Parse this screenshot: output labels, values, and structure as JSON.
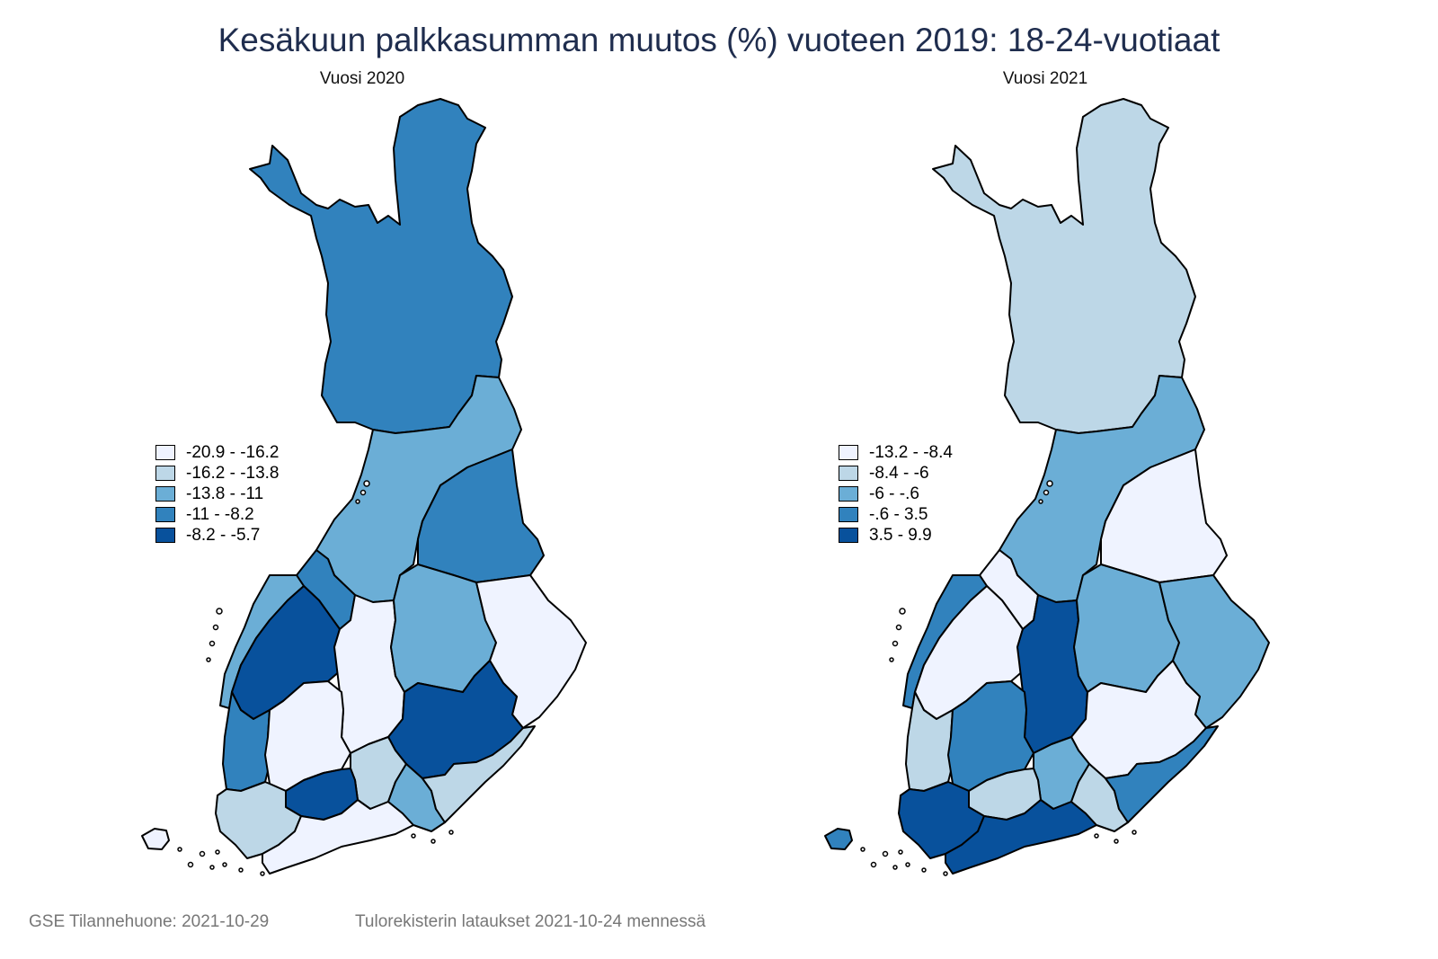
{
  "title": "Kesäkuun palkkasumman muutos (%) vuoteen 2019: 18-24-vuotiaat",
  "panels": [
    {
      "subtitle": "Vuosi 2020",
      "legend": [
        {
          "label": "-20.9  -  -16.2",
          "color": "#eff3ff"
        },
        {
          "label": "-16.2  -  -13.8",
          "color": "#bdd7e7"
        },
        {
          "label": "-13.8  -  -11",
          "color": "#6baed6"
        },
        {
          "label": "-11  -  -8.2",
          "color": "#3182bd"
        },
        {
          "label": "-8.2  -  -5.7",
          "color": "#08519c"
        }
      ],
      "regions": {
        "lappi": "#3182bd",
        "pohjois_pohjanmaa": "#6baed6",
        "kainuu": "#3182bd",
        "keski_pohjanmaa": "#3182bd",
        "pohjanmaa": "#6baed6",
        "etela_pohjanmaa": "#08519c",
        "keski_suomi": "#eff3ff",
        "pohjois_savo": "#6baed6",
        "pohjois_karjala": "#eff3ff",
        "satakunta": "#3182bd",
        "pirkanmaa": "#eff3ff",
        "etela_savo": "#08519c",
        "paijat_hame": "#bdd7e7",
        "kanta_hame": "#08519c",
        "varsinais_suomi": "#bdd7e7",
        "uusimaa": "#eff3ff",
        "kymenlaakso": "#6baed6",
        "etela_karjala": "#bdd7e7",
        "ahvenanmaa": "#eff3ff"
      }
    },
    {
      "subtitle": "Vuosi 2021",
      "legend": [
        {
          "label": "-13.2  -  -8.4",
          "color": "#eff3ff"
        },
        {
          "label": "-8.4  -  -6",
          "color": "#bdd7e7"
        },
        {
          "label": "-6  -  -.6",
          "color": "#6baed6"
        },
        {
          "label": "-.6  -  3.5",
          "color": "#3182bd"
        },
        {
          "label": "3.5  -  9.9",
          "color": "#08519c"
        }
      ],
      "regions": {
        "lappi": "#bdd7e7",
        "pohjois_pohjanmaa": "#6baed6",
        "kainuu": "#eff3ff",
        "keski_pohjanmaa": "#eff3ff",
        "pohjanmaa": "#3182bd",
        "etela_pohjanmaa": "#eff3ff",
        "keski_suomi": "#08519c",
        "pohjois_savo": "#6baed6",
        "pohjois_karjala": "#6baed6",
        "satakunta": "#bdd7e7",
        "pirkanmaa": "#3182bd",
        "etela_savo": "#eff3ff",
        "paijat_hame": "#6baed6",
        "kanta_hame": "#bdd7e7",
        "varsinais_suomi": "#08519c",
        "uusimaa": "#08519c",
        "kymenlaakso": "#bdd7e7",
        "etela_karjala": "#3182bd",
        "ahvenanmaa": "#3182bd"
      }
    }
  ],
  "footer": {
    "left": "GSE Tilannehuone: 2021-10-29",
    "right": "Tulorekisterin lataukset 2021-10-24 mennessä"
  }
}
